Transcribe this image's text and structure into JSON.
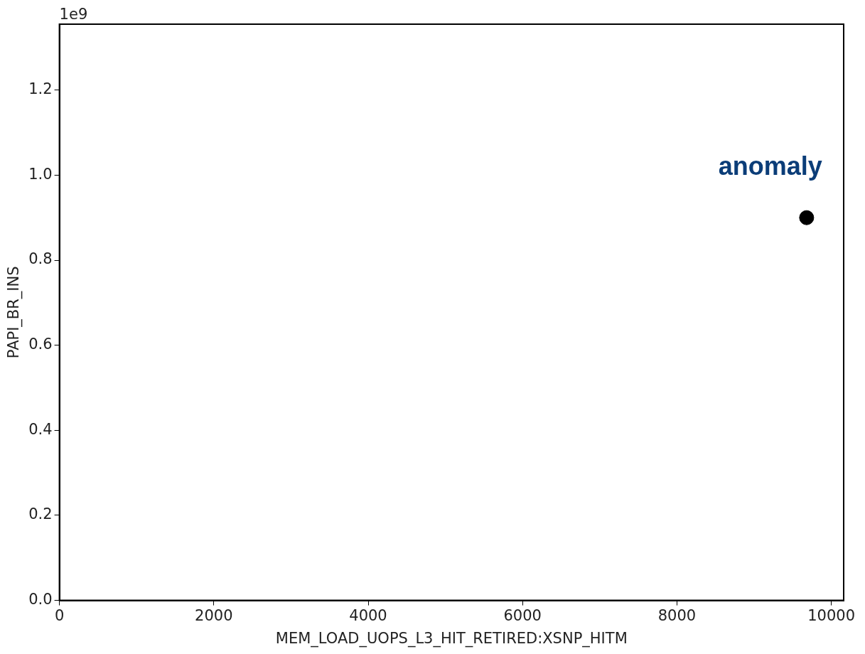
{
  "chart_data": {
    "type": "scatter",
    "xlabel": "MEM_LOAD_UOPS_L3_HIT_RETIRED:XSNP_HITM",
    "ylabel": "PAPI_BR_INS",
    "x": [
      9680
    ],
    "series": [
      {
        "color": "#000000",
        "values": [
          0.9
        ]
      }
    ],
    "xlim": [
      0,
      10160
    ],
    "xticks": [
      0,
      2000,
      4000,
      6000,
      8000,
      10000
    ],
    "ylim": [
      0,
      1.355
    ],
    "yticks": [
      {
        "value": 0,
        "label": "0.0"
      },
      0.2,
      0.4,
      0.6,
      0.8,
      {
        "value": 1,
        "label": "1.0"
      },
      1.2
    ],
    "annotations": [
      "1e9",
      "anomaly"
    ],
    "marker": "circle",
    "legend": false
  }
}
